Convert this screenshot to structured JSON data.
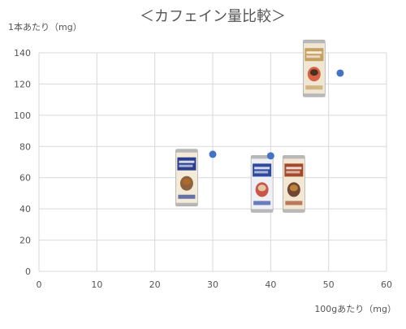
{
  "chart_data": {
    "type": "scatter",
    "title": "＜カフェイン量比較＞",
    "xlabel": "100gあたり（mg）",
    "ylabel": "1本あたり（mg）",
    "xlim": [
      0,
      60
    ],
    "ylim": [
      0,
      140
    ],
    "xticks": [
      0,
      10,
      20,
      30,
      40,
      50,
      60
    ],
    "yticks": [
      0,
      20,
      40,
      60,
      80,
      100,
      120,
      140
    ],
    "grid": true,
    "legend": "none",
    "point_color": "#4472C4",
    "points": [
      {
        "x": 30,
        "y": 75
      },
      {
        "x": 40,
        "y": 74
      },
      {
        "x": 52,
        "y": 127
      }
    ],
    "can_images": [
      {
        "name": "cafe-au-lait-can-image",
        "x": 25.5,
        "y": 60
      },
      {
        "name": "tokusei-latte-can-image",
        "x": 38.5,
        "y": 56
      },
      {
        "name": "boss-can-image",
        "x": 44,
        "y": 56
      },
      {
        "name": "craft-coffee-can-image",
        "x": 47.5,
        "y": 130
      }
    ]
  }
}
